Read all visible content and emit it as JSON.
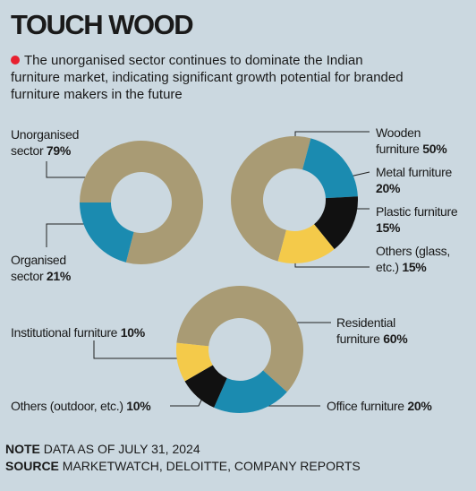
{
  "title": "TOUCH WOOD",
  "subtitle": "The unorganised sector continues to dominate the Indian furniture market, indicating significant growth potential for branded furniture makers in the future",
  "note": {
    "label": "NOTE",
    "text": "DATA AS OF JULY 31, 2024"
  },
  "source": {
    "label": "SOURCE",
    "text": "MARKETWATCH, DELOITTE, COMPANY REPORTS"
  },
  "chart_data": [
    {
      "type": "donut",
      "categories": [
        "Unorganised sector",
        "Organised sector"
      ],
      "values": [
        79,
        21
      ],
      "value_labels": [
        "79%",
        "21%"
      ],
      "colors": [
        "#a99b74",
        "#1b8bb0"
      ]
    },
    {
      "type": "donut",
      "categories": [
        "Wooden furniture",
        "Metal furniture",
        "Plastic furniture",
        "Others (glass, etc.)"
      ],
      "values": [
        50,
        20,
        15,
        15
      ],
      "value_labels": [
        "50%",
        "20%",
        "15%",
        "15%"
      ],
      "colors": [
        "#a99b74",
        "#1b8bb0",
        "#111111",
        "#f4ca4a"
      ]
    },
    {
      "type": "donut",
      "categories": [
        "Residential furniture",
        "Office furniture",
        "Others (outdoor, etc.)",
        "Institutional furniture"
      ],
      "values": [
        60,
        20,
        10,
        10
      ],
      "value_labels": [
        "60%",
        "20%",
        "10%",
        "10%"
      ],
      "colors": [
        "#a99b74",
        "#1b8bb0",
        "#111111",
        "#f4ca4a"
      ]
    }
  ]
}
